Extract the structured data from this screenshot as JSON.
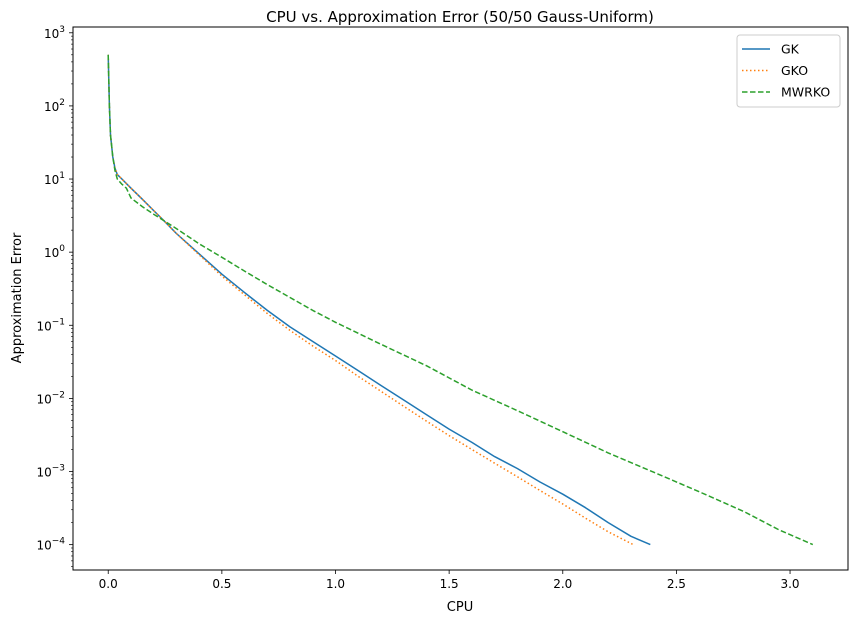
{
  "chart_data": {
    "type": "line",
    "title": "CPU vs. Approximation Error (50/50 Gauss-Uniform)",
    "xlabel": "CPU",
    "ylabel": "Approximation Error",
    "xlim": [
      -0.155,
      3.255
    ],
    "ylim": [
      4.5e-05,
      1200
    ],
    "yscale": "log",
    "grid": false,
    "legend_position": "top-right",
    "xticks": [
      {
        "value": 0.0,
        "label": "0.0"
      },
      {
        "value": 0.5,
        "label": "0.5"
      },
      {
        "value": 1.0,
        "label": "1.0"
      },
      {
        "value": 1.5,
        "label": "1.5"
      },
      {
        "value": 2.0,
        "label": "2.0"
      },
      {
        "value": 2.5,
        "label": "2.5"
      },
      {
        "value": 3.0,
        "label": "3.0"
      }
    ],
    "yticks": [
      {
        "value": 0.0001,
        "base": "10",
        "exp": "−4"
      },
      {
        "value": 0.001,
        "base": "10",
        "exp": "−3"
      },
      {
        "value": 0.01,
        "base": "10",
        "exp": "−2"
      },
      {
        "value": 0.1,
        "base": "10",
        "exp": "−1"
      },
      {
        "value": 1,
        "base": "10",
        "exp": "0"
      },
      {
        "value": 10,
        "base": "10",
        "exp": "1"
      },
      {
        "value": 100,
        "base": "10",
        "exp": "2"
      },
      {
        "value": 1000,
        "base": "10",
        "exp": "3"
      }
    ],
    "series": [
      {
        "name": "GK",
        "color": "#1f77b4",
        "dash": "solid",
        "x": [
          0.0,
          0.005,
          0.01,
          0.02,
          0.03,
          0.04,
          0.06,
          0.1,
          0.15,
          0.2,
          0.25,
          0.3,
          0.4,
          0.5,
          0.6,
          0.7,
          0.8,
          0.9,
          1.0,
          1.1,
          1.2,
          1.3,
          1.4,
          1.5,
          1.6,
          1.7,
          1.8,
          1.9,
          2.0,
          2.1,
          2.2,
          2.3,
          2.385
        ],
        "y": [
          500,
          100,
          40,
          20,
          14,
          11.5,
          10,
          7.5,
          5.3,
          3.7,
          2.6,
          1.8,
          0.95,
          0.5,
          0.28,
          0.16,
          0.095,
          0.06,
          0.038,
          0.024,
          0.015,
          0.0095,
          0.006,
          0.0038,
          0.0025,
          0.0016,
          0.0011,
          0.00072,
          0.00049,
          0.00032,
          0.0002,
          0.00013,
          0.0001
        ]
      },
      {
        "name": "GKO",
        "color": "#ff7f0e",
        "dash": "dotted",
        "x": [
          0.0,
          0.005,
          0.01,
          0.02,
          0.03,
          0.04,
          0.06,
          0.1,
          0.15,
          0.2,
          0.25,
          0.3,
          0.4,
          0.5,
          0.6,
          0.7,
          0.8,
          0.9,
          1.0,
          1.1,
          1.2,
          1.3,
          1.4,
          1.5,
          1.6,
          1.7,
          1.8,
          1.9,
          2.0,
          2.1,
          2.2,
          2.31
        ],
        "y": [
          500,
          100,
          40,
          20,
          14,
          11.5,
          10,
          7.5,
          5.3,
          3.7,
          2.6,
          1.8,
          0.92,
          0.47,
          0.26,
          0.145,
          0.085,
          0.052,
          0.033,
          0.02,
          0.0125,
          0.0078,
          0.0049,
          0.0031,
          0.002,
          0.0013,
          0.00085,
          0.00055,
          0.00036,
          0.00023,
          0.00015,
          0.0001
        ]
      },
      {
        "name": "MWRKO",
        "color": "#2ca02c",
        "dash": "dashed",
        "x": [
          0.0,
          0.005,
          0.01,
          0.02,
          0.03,
          0.04,
          0.06,
          0.08,
          0.1,
          0.15,
          0.2,
          0.3,
          0.4,
          0.5,
          0.6,
          0.7,
          0.8,
          0.9,
          1.0,
          1.2,
          1.4,
          1.6,
          1.8,
          2.0,
          2.2,
          2.4,
          2.6,
          2.8,
          2.95,
          3.1
        ],
        "y": [
          500,
          100,
          40,
          20,
          13,
          10,
          8.5,
          7.5,
          5.5,
          4.2,
          3.3,
          2.1,
          1.3,
          0.85,
          0.55,
          0.36,
          0.24,
          0.16,
          0.11,
          0.055,
          0.028,
          0.013,
          0.0068,
          0.0035,
          0.0018,
          0.00098,
          0.00053,
          0.00028,
          0.00016,
          0.0001
        ]
      }
    ]
  }
}
